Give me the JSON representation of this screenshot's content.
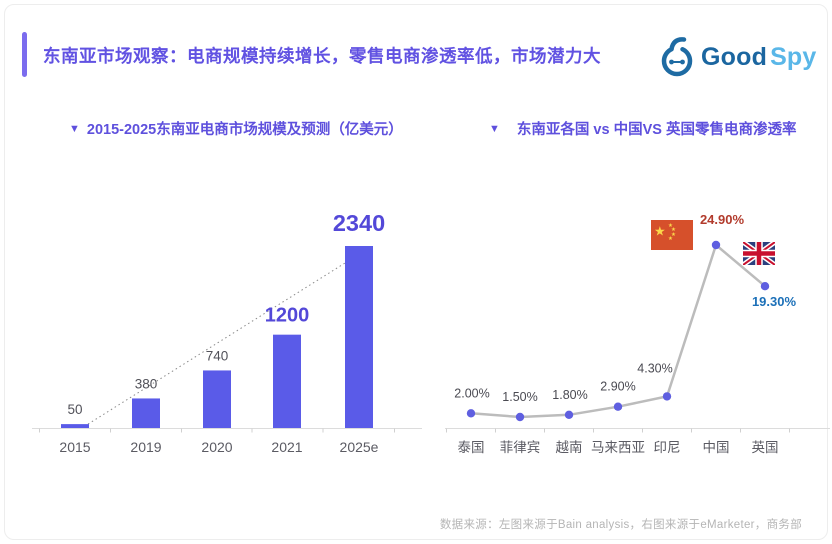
{
  "header": {
    "title": "东南亚市场观察：电商规模持续增长，零售电商渗透率低，市场潜力大",
    "logo": {
      "text_primary": "Good",
      "text_secondary": "Spy"
    }
  },
  "panels": {
    "left_marker": "▼",
    "right_marker": "▼"
  },
  "chart_data": [
    {
      "type": "bar",
      "title": "2015-2025东南亚电商市场规模及预测（亿美元）",
      "categories": [
        "2015",
        "2019",
        "2020",
        "2021",
        "2025e"
      ],
      "values": [
        50,
        380,
        740,
        1200,
        2340
      ],
      "value_labels": [
        "50",
        "380",
        "740",
        "1200",
        "2340"
      ],
      "unit": "亿美元",
      "ylim": [
        0,
        2340
      ],
      "grid": false,
      "legend": false,
      "trendline": true,
      "bar_color": "#5a5be8",
      "highlight_color": "#5348d8"
    },
    {
      "type": "line",
      "title": "东南亚各国 vs 中国VS 英国零售电商渗透率",
      "categories": [
        "泰国",
        "菲律宾",
        "越南",
        "马来西亚",
        "印尼",
        "中国",
        "英国"
      ],
      "values": [
        2.0,
        1.5,
        1.8,
        2.9,
        4.3,
        24.9,
        19.3
      ],
      "value_labels": [
        "2.00%",
        "1.50%",
        "1.80%",
        "2.90%",
        "4.30%",
        "24.90%",
        "19.30%"
      ],
      "ylim": [
        0,
        26
      ],
      "grid": false,
      "legend": false,
      "line_color": "#bcbcbc",
      "point_color": "#5f5fe0",
      "label_colors": [
        null,
        null,
        null,
        null,
        null,
        "#b23b2c",
        "#1c70b8"
      ],
      "flags": [
        {
          "country": "中国",
          "icon": "china-flag-icon"
        },
        {
          "country": "英国",
          "icon": "uk-flag-icon"
        }
      ]
    }
  ],
  "colors": {
    "accent_purple": "#6152e2",
    "bar_purple": "#5a5be8",
    "china_red": "#b23b2c",
    "uk_blue": "#1c70b8",
    "china_flag_red": "#d6502b",
    "axis_gray": "#d9d9d9"
  },
  "footer": {
    "source_note": "数据来源：左图来源于Bain analysis，右图来源于eMarketer，商务部"
  }
}
